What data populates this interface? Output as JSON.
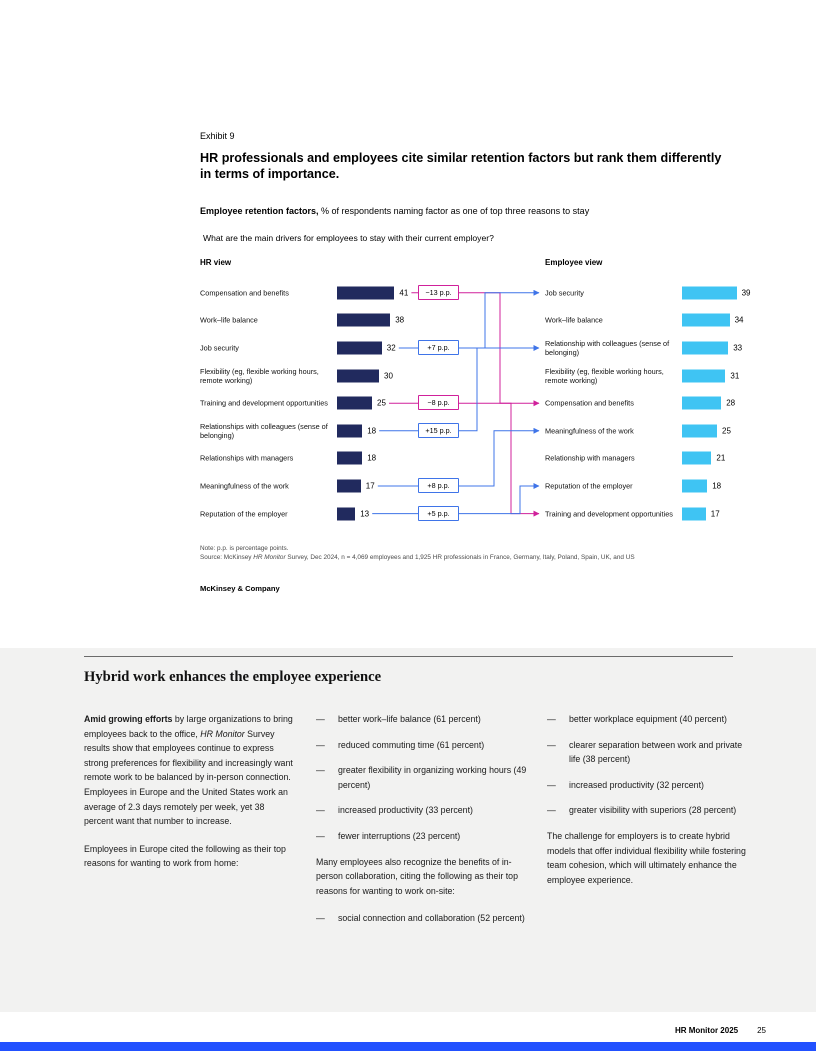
{
  "exhibit": {
    "label": "Exhibit 9",
    "title": "HR professionals and employees cite similar retention factors but rank them differently in terms of importance.",
    "subtitle_bold": "Employee retention factors,",
    "subtitle_rest": " % of respondents naming factor as one of top three reasons to stay",
    "question": "What are the main drivers for employees to stay with their current employer?",
    "note": "Note: p.p. is percentage points.",
    "source_prefix": "Source: McKinsey ",
    "source_italic": "HR Monitor",
    "source_rest": " Survey, Dec 2024, n = 4,069 employees and 1,925 HR professionals in France, Germany, Italy, Poland, Spain, UK, and US",
    "brand": "McKinsey & Company"
  },
  "chart_data": {
    "type": "bar",
    "orientation": "horizontal",
    "unit": "% of respondents",
    "groups": [
      {
        "name": "HR view",
        "bar_color": "#212a5e",
        "categories": [
          "Compensation and benefits",
          "Work–life balance",
          "Job security",
          "Flexibility (eg, flexible working hours, remote working)",
          "Training and development opportunities",
          "Relationships with colleagues (sense of belonging)",
          "Relationships with managers",
          "Meaningfulness of the work",
          "Reputation of the employer"
        ],
        "values": [
          41,
          38,
          32,
          30,
          25,
          18,
          18,
          17,
          13
        ]
      },
      {
        "name": "Employee view",
        "bar_color": "#3fc4f3",
        "categories": [
          "Job security",
          "Work–life balance",
          "Relationship with colleagues (sense of belonging)",
          "Flexibility (eg, flexible working hours, remote working)",
          "Compensation and benefits",
          "Meaningfulness of the work",
          "Relationship with managers",
          "Reputation of the employer",
          "Training and development opportunities"
        ],
        "values": [
          39,
          34,
          33,
          31,
          28,
          25,
          21,
          18,
          17
        ]
      },
      {
        "name": "xlim",
        "values": [
          0,
          45
        ]
      }
    ],
    "connections": [
      {
        "from": "Compensation and benefits",
        "to": "Compensation and benefits",
        "label": "−13 p.p.",
        "color": "#d0219b"
      },
      {
        "from": "Job security",
        "to": "Job security",
        "label": "+7 p.p.",
        "color": "#3f74e8"
      },
      {
        "from": "Training and development opportunities",
        "to": "Training and development opportunities",
        "label": "−8 p.p.",
        "color": "#d0219b"
      },
      {
        "from": "Relationships with colleagues (sense of belonging)",
        "to": "Relationship with colleagues (sense of belonging)",
        "label": "+15 p.p.",
        "color": "#3f74e8"
      },
      {
        "from": "Meaningfulness of the work",
        "to": "Meaningfulness of the work",
        "label": "+8 p.p.",
        "color": "#3f74e8"
      },
      {
        "from": "Reputation of the employer",
        "to": "Reputation of the employer",
        "label": "+5 p.p.",
        "color": "#3f74e8"
      }
    ]
  },
  "article": {
    "heading": "Hybrid work enhances the employee experience",
    "col1": {
      "p1_bold": "Amid growing efforts",
      "p1_rest": " by large organizations to bring employees back to the office, ",
      "p1_italic": "HR Monitor",
      "p1_rest2": " Survey results show that employees continue to express strong preferences for flexibility and increasingly want remote work to be balanced by in-person connection. Employees in Europe and the United States work an average of 2.3 days remotely per week, yet 38 percent want that number to increase.",
      "p2": "Employees in Europe cited the following as their top reasons for wanting to work from home:"
    },
    "col2": {
      "bullets": [
        "better work–life balance (61 percent)",
        "reduced commuting time (61 percent)",
        "greater flexibility in organizing working hours (49 percent)",
        "increased productivity (33 percent)",
        "fewer interruptions (23 percent)"
      ],
      "p": "Many employees also recognize the benefits of in-person collaboration, citing the following as their top reasons for wanting to work on-site:",
      "bullets2": [
        "social connection and collaboration (52 percent)"
      ]
    },
    "col3": {
      "bullets": [
        "better workplace equipment (40 percent)",
        "clearer separation between work and private life (38 percent)",
        "increased productivity (32 percent)",
        "greater visibility with superiors (28 percent)"
      ],
      "p": "The challenge for employers is to create hybrid models that offer individual flexibility while fostering team cohesion, which will ultimately enhance the employee experience."
    }
  },
  "footer": {
    "title": "HR Monitor 2025",
    "page": "25"
  }
}
